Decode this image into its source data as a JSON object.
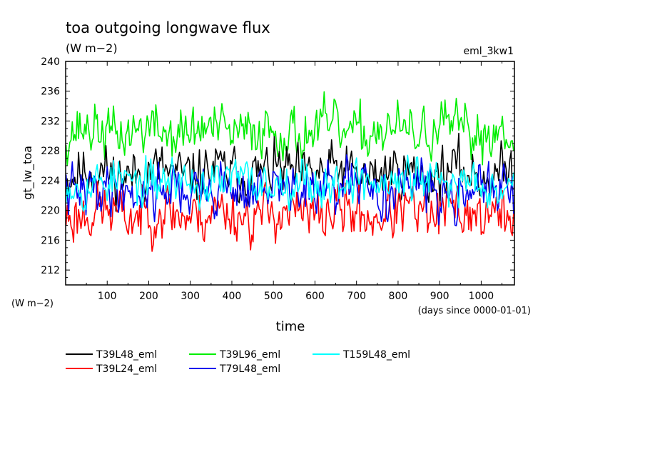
{
  "chart_data": {
    "type": "line",
    "title": "toa outgoing longwave flux",
    "subtitle": "(W m−2)",
    "run_label": "eml_3kw1",
    "ylabel": "gt_lw_toa",
    "y_unit_label": "(W m−2)",
    "xlabel": "time",
    "x_unit_label": "(days since 0000-01-01)",
    "xlim": [
      0,
      1080
    ],
    "ylim": [
      210,
      240
    ],
    "x_ticks": [
      100,
      200,
      300,
      400,
      500,
      600,
      700,
      800,
      900,
      1000
    ],
    "y_ticks": [
      212,
      216,
      220,
      224,
      228,
      232,
      236,
      240
    ],
    "grid": false,
    "legend_position": "bottom",
    "series": [
      {
        "name": "T39L48_eml",
        "color": "#000000",
        "mean": 225.0,
        "amp": 1.5,
        "seed": 11
      },
      {
        "name": "T39L24_eml",
        "color": "#ff0000",
        "mean": 219.6,
        "amp": 1.6,
        "seed": 23
      },
      {
        "name": "T39L96_eml",
        "color": "#00ee00",
        "mean": 230.6,
        "amp": 1.5,
        "seed": 37
      },
      {
        "name": "T79L48_eml",
        "color": "#0000ee",
        "mean": 222.8,
        "amp": 1.5,
        "seed": 41
      },
      {
        "name": "T159L48_eml",
        "color": "#00ffff",
        "mean": 223.8,
        "amp": 1.3,
        "seed": 53
      }
    ]
  }
}
